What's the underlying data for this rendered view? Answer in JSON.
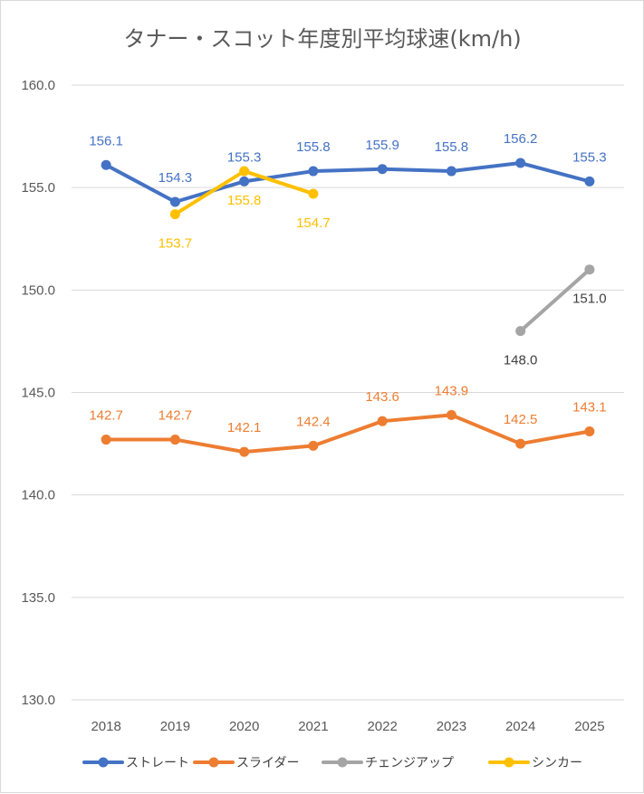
{
  "chart_data": {
    "type": "line",
    "title": "タナー・スコット年度別平均球速(km/h)",
    "xlabel": "",
    "ylabel": "",
    "categories": [
      "2018",
      "2019",
      "2020",
      "2021",
      "2022",
      "2023",
      "2024",
      "2025"
    ],
    "ylim": [
      130.0,
      160.0
    ],
    "yticks": [
      "160.0",
      "155.0",
      "150.0",
      "145.0",
      "140.0",
      "135.0",
      "130.0"
    ],
    "grid": true,
    "legend_position": "bottom",
    "series": [
      {
        "name": "ストレート",
        "color": "#4472c4",
        "values": [
          156.1,
          154.3,
          155.3,
          155.8,
          155.9,
          155.8,
          156.2,
          155.3
        ],
        "labels": [
          "156.1",
          "154.3",
          "155.3",
          "155.8",
          "155.9",
          "155.8",
          "156.2",
          "155.3"
        ],
        "label_pos": [
          "above",
          "above",
          "above",
          "above",
          "above",
          "above",
          "above",
          "above"
        ]
      },
      {
        "name": "スライダー",
        "color": "#ed7d31",
        "values": [
          142.7,
          142.7,
          142.1,
          142.4,
          143.6,
          143.9,
          142.5,
          143.1
        ],
        "labels": [
          "142.7",
          "142.7",
          "142.1",
          "142.4",
          "143.6",
          "143.9",
          "142.5",
          "143.1"
        ],
        "label_pos": [
          "above",
          "above",
          "above",
          "above",
          "above",
          "above",
          "above",
          "above"
        ]
      },
      {
        "name": "チェンジアップ",
        "color": "#a5a5a5",
        "label_color": "#404040",
        "values": [
          null,
          null,
          null,
          null,
          null,
          null,
          148.0,
          151.0
        ],
        "labels": [
          null,
          null,
          null,
          null,
          null,
          null,
          "148.0",
          "151.0"
        ],
        "label_pos": [
          null,
          null,
          null,
          null,
          null,
          null,
          "below",
          "below"
        ]
      },
      {
        "name": "シンカー",
        "color": "#ffc000",
        "values": [
          null,
          153.7,
          155.8,
          154.7,
          null,
          null,
          null,
          null
        ],
        "labels": [
          null,
          "153.7",
          "155.8",
          "154.7",
          null,
          null,
          null,
          null
        ],
        "label_pos": [
          null,
          "below",
          "below",
          "below",
          null,
          null,
          null,
          null
        ]
      }
    ]
  }
}
